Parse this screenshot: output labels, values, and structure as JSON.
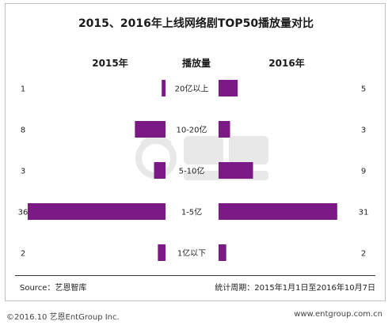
{
  "chart_data": {
    "type": "bar",
    "title": "2015、2016年上线网络剧TOP50播放量对比",
    "category_header": "播放量",
    "categories": [
      "20亿以上",
      "10-20亿",
      "5-10亿",
      "1-5亿",
      "1亿以下"
    ],
    "series": [
      {
        "name": "2015年",
        "values": [
          1,
          8,
          3,
          36,
          2
        ]
      },
      {
        "name": "2016年",
        "values": [
          5,
          3,
          9,
          31,
          2
        ]
      }
    ],
    "xlim": [
      0,
      36
    ],
    "grid": false,
    "legend": "none",
    "colors": {
      "bar": "#7b1a84"
    }
  },
  "source": "Source：艺恩智库",
  "period": "统计周期：2015年1月1日至2016年10月7日",
  "footer": {
    "copyright": "©2016.10  艺恩EntGroup Inc.",
    "website": "www.entgroup.com.cn"
  }
}
